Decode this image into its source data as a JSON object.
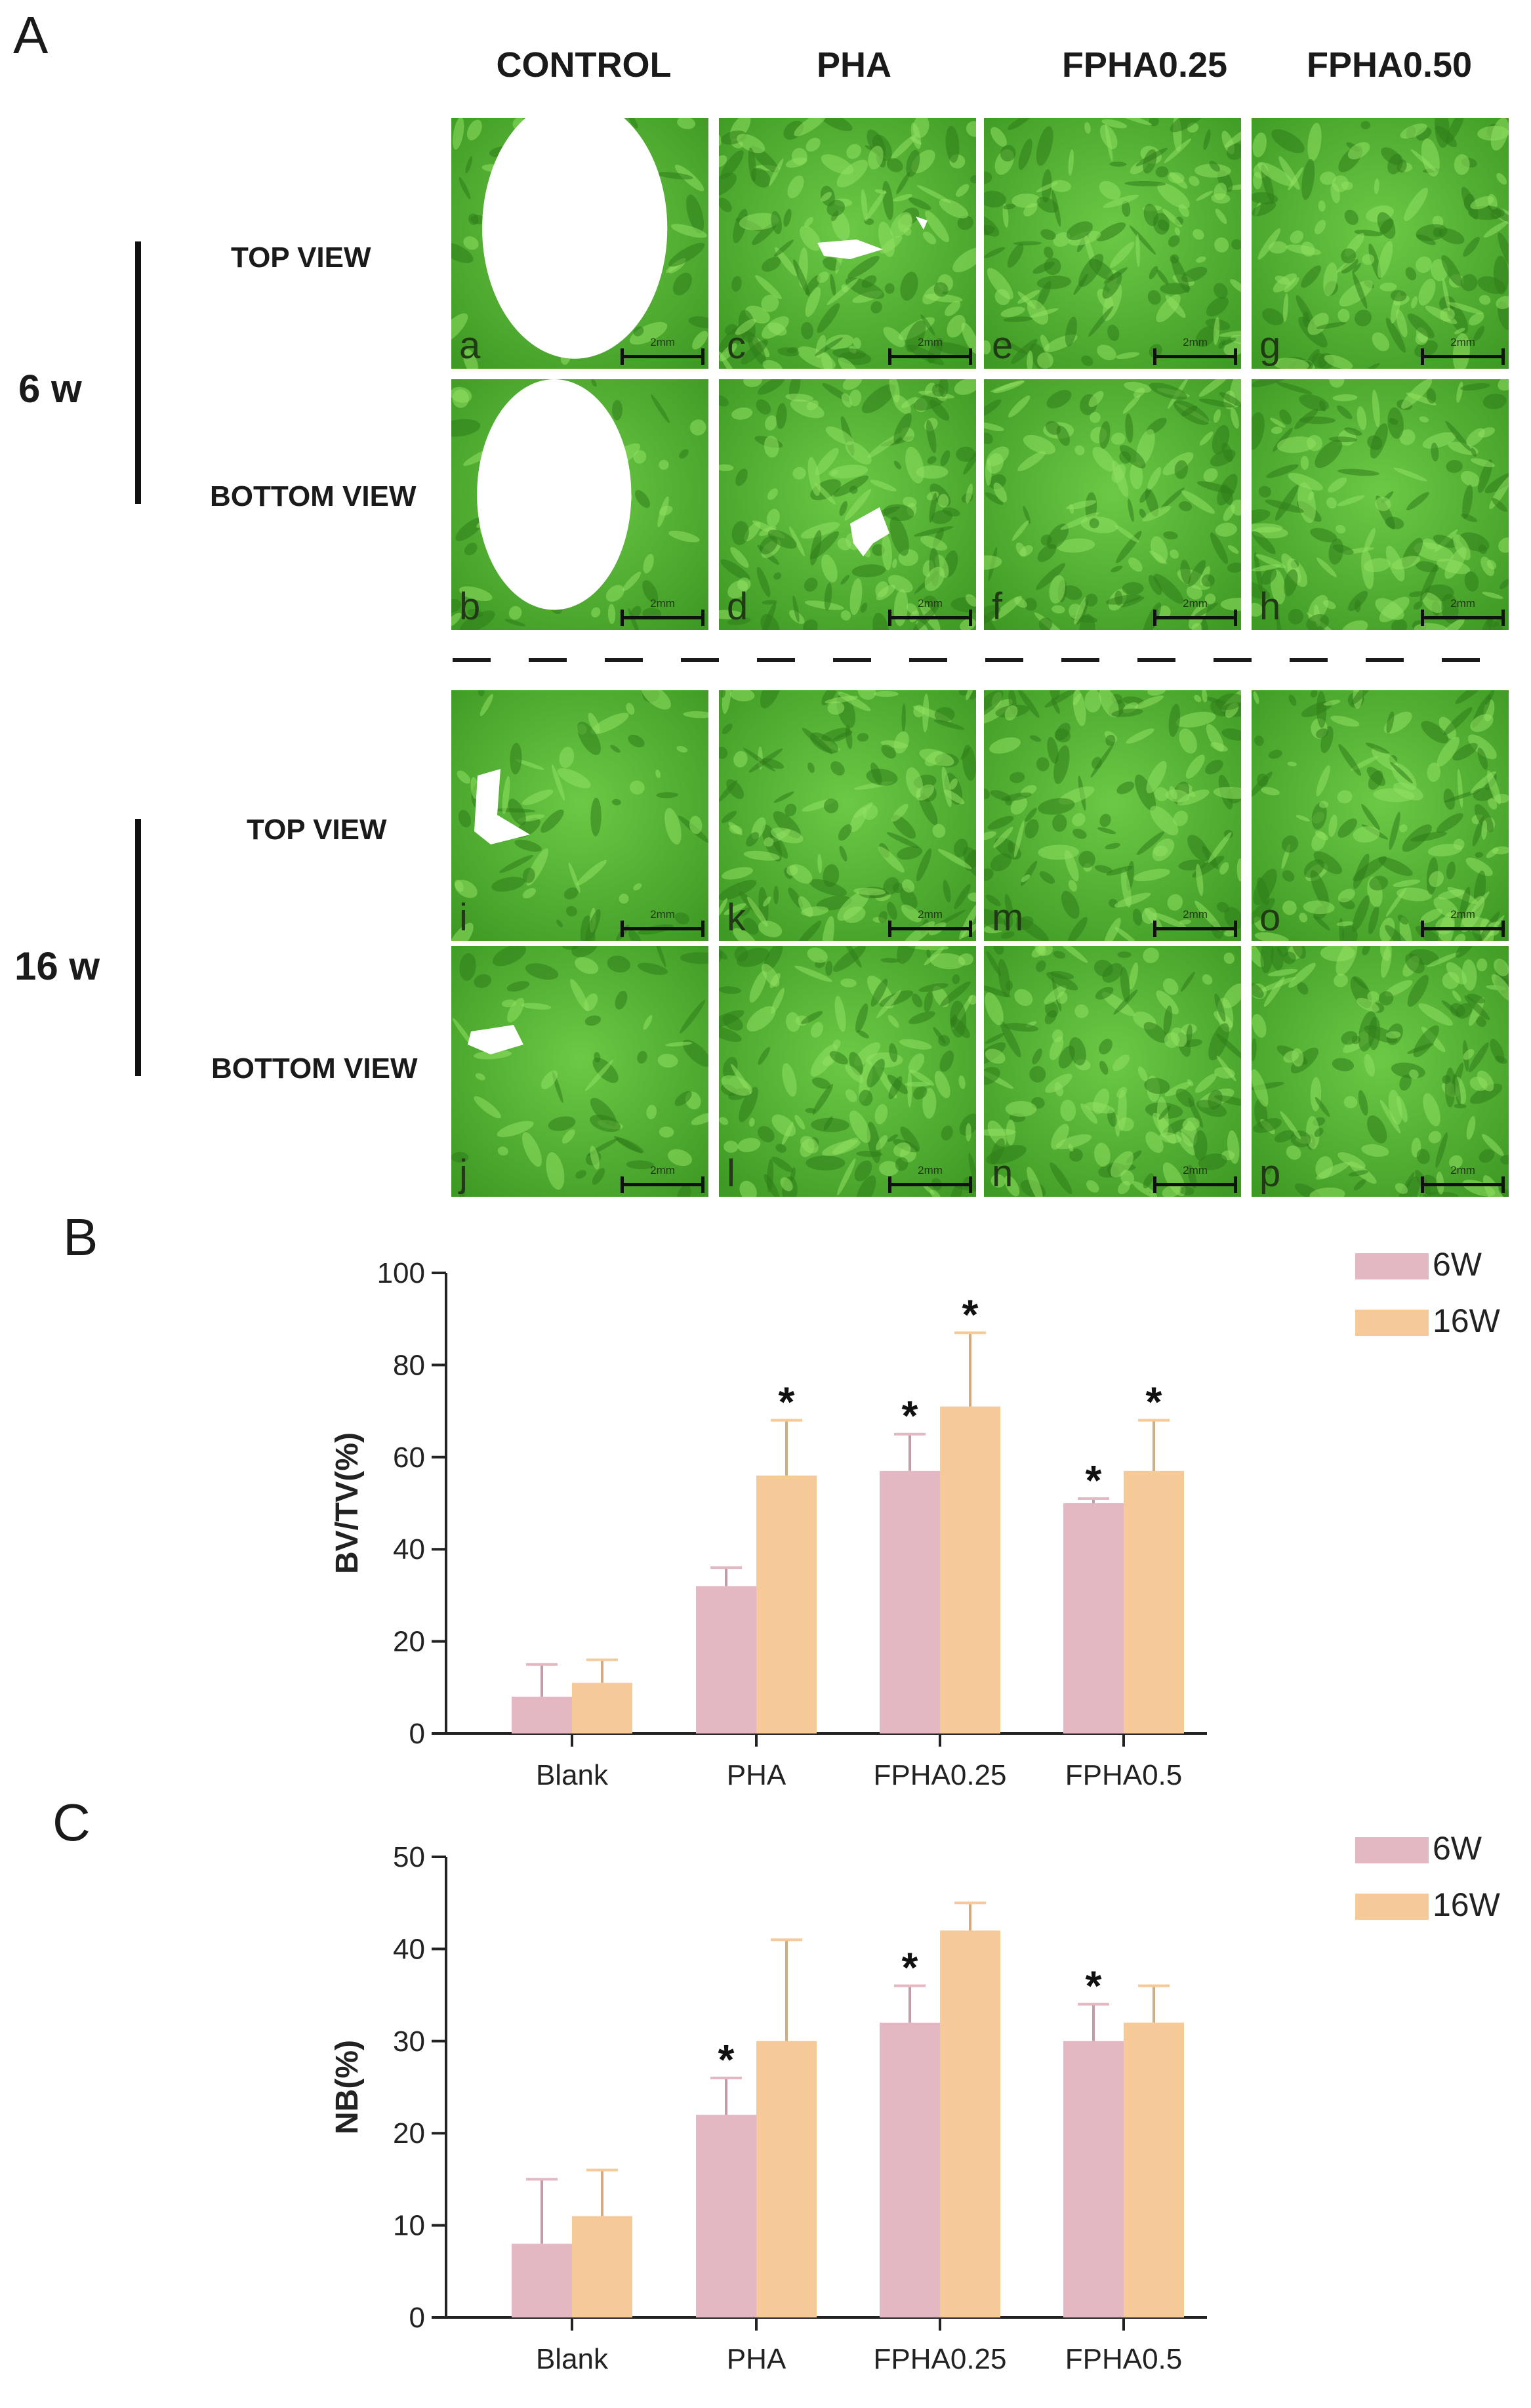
{
  "panels": {
    "a_label": "A",
    "b_label": "B",
    "c_label": "C"
  },
  "columns": [
    "CONTROL",
    "PHA",
    "FPHA0.25",
    "FPHA0.50"
  ],
  "timepoints": [
    {
      "label": "6 w",
      "views": [
        "TOP VIEW",
        "BOTTOM VIEW"
      ]
    },
    {
      "label": "16 w",
      "views": [
        "TOP VIEW",
        "BOTTOM VIEW"
      ]
    }
  ],
  "image_grid": [
    [
      "a",
      "c",
      "e",
      "g"
    ],
    [
      "b",
      "d",
      "f",
      "h"
    ],
    [
      "i",
      "k",
      "m",
      "o"
    ],
    [
      "j",
      "l",
      "n",
      "p"
    ]
  ],
  "scale_bar_label": "2mm",
  "colors": {
    "bone": "#55b834",
    "defect": "#ffffff",
    "series_6w": "#e4b8c3",
    "series_16w": "#f6c998",
    "axis": "#222222"
  },
  "chart_data": [
    {
      "type": "bar",
      "title": "",
      "ylabel": "BV/TV(%)",
      "xlabel": "",
      "ylim": [
        0,
        100
      ],
      "yticks": [
        0,
        20,
        40,
        60,
        80,
        100
      ],
      "categories": [
        "Blank",
        "PHA",
        "FPHA0.25",
        "FPHA0.5"
      ],
      "series": [
        {
          "name": "6W",
          "color": "#e4b8c3",
          "values": [
            8,
            32,
            57,
            50
          ],
          "errors": [
            7,
            4,
            8,
            1
          ],
          "significant": [
            false,
            false,
            true,
            true
          ]
        },
        {
          "name": "16W",
          "color": "#f6c998",
          "values": [
            11,
            56,
            71,
            57
          ],
          "errors": [
            5,
            12,
            16,
            11
          ],
          "significant": [
            false,
            true,
            true,
            true
          ]
        }
      ],
      "marker": "*",
      "legend": "top-right"
    },
    {
      "type": "bar",
      "title": "",
      "ylabel": "NB(%)",
      "xlabel": "",
      "ylim": [
        0,
        50
      ],
      "yticks": [
        0,
        10,
        20,
        30,
        40,
        50
      ],
      "categories": [
        "Blank",
        "PHA",
        "FPHA0.25",
        "FPHA0.5"
      ],
      "series": [
        {
          "name": "6W",
          "color": "#e4b8c3",
          "values": [
            8,
            22,
            32,
            30
          ],
          "errors": [
            7,
            4,
            4,
            4
          ],
          "significant": [
            false,
            true,
            true,
            true
          ]
        },
        {
          "name": "16W",
          "color": "#f6c998",
          "values": [
            11,
            30,
            42,
            32
          ],
          "errors": [
            5,
            11,
            3,
            4
          ],
          "significant": [
            false,
            false,
            false,
            false
          ]
        }
      ],
      "marker": "*",
      "legend": "top-right"
    }
  ]
}
